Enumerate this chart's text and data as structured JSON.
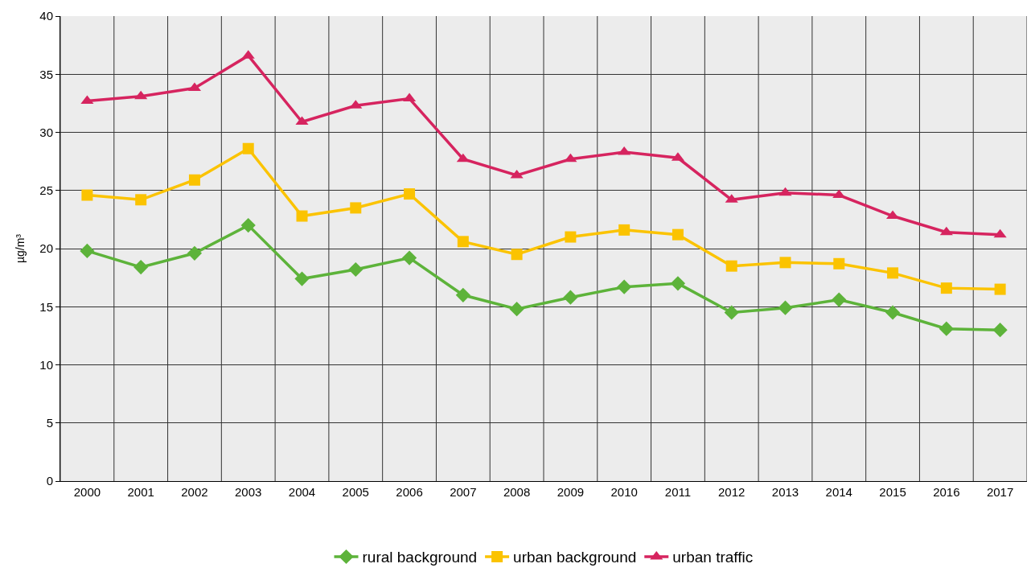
{
  "chart_data": {
    "type": "line",
    "ylabel": "µg/m³",
    "categories": [
      "2000",
      "2001",
      "2002",
      "2003",
      "2004",
      "2005",
      "2006",
      "2007",
      "2008",
      "2009",
      "2010",
      "2011",
      "2012",
      "2013",
      "2014",
      "2015",
      "2016",
      "2017"
    ],
    "series": [
      {
        "name": "rural background",
        "color": "#5db33a",
        "marker": "diamond",
        "values": [
          19.8,
          18.4,
          19.6,
          22.0,
          17.4,
          18.2,
          19.2,
          16.0,
          14.8,
          15.8,
          16.7,
          17.0,
          14.5,
          14.9,
          15.6,
          14.5,
          13.1,
          13.0
        ]
      },
      {
        "name": "urban background",
        "color": "#fbc300",
        "marker": "square",
        "values": [
          24.6,
          24.2,
          25.9,
          28.6,
          22.8,
          23.5,
          24.7,
          20.6,
          19.5,
          21.0,
          21.6,
          21.2,
          18.5,
          18.8,
          18.7,
          17.9,
          16.6,
          16.5
        ]
      },
      {
        "name": "urban traffic",
        "color": "#d6245f",
        "marker": "triangle",
        "values": [
          32.7,
          33.1,
          33.8,
          36.6,
          30.9,
          32.3,
          32.9,
          27.7,
          26.3,
          27.7,
          28.3,
          27.8,
          24.2,
          24.8,
          24.6,
          22.8,
          21.4,
          21.2
        ]
      }
    ],
    "ylim": [
      0,
      40
    ],
    "yticks": [
      0,
      5,
      10,
      15,
      20,
      25,
      30,
      35,
      40
    ],
    "grid": true,
    "legend": "bottom",
    "line_style": "solid"
  }
}
